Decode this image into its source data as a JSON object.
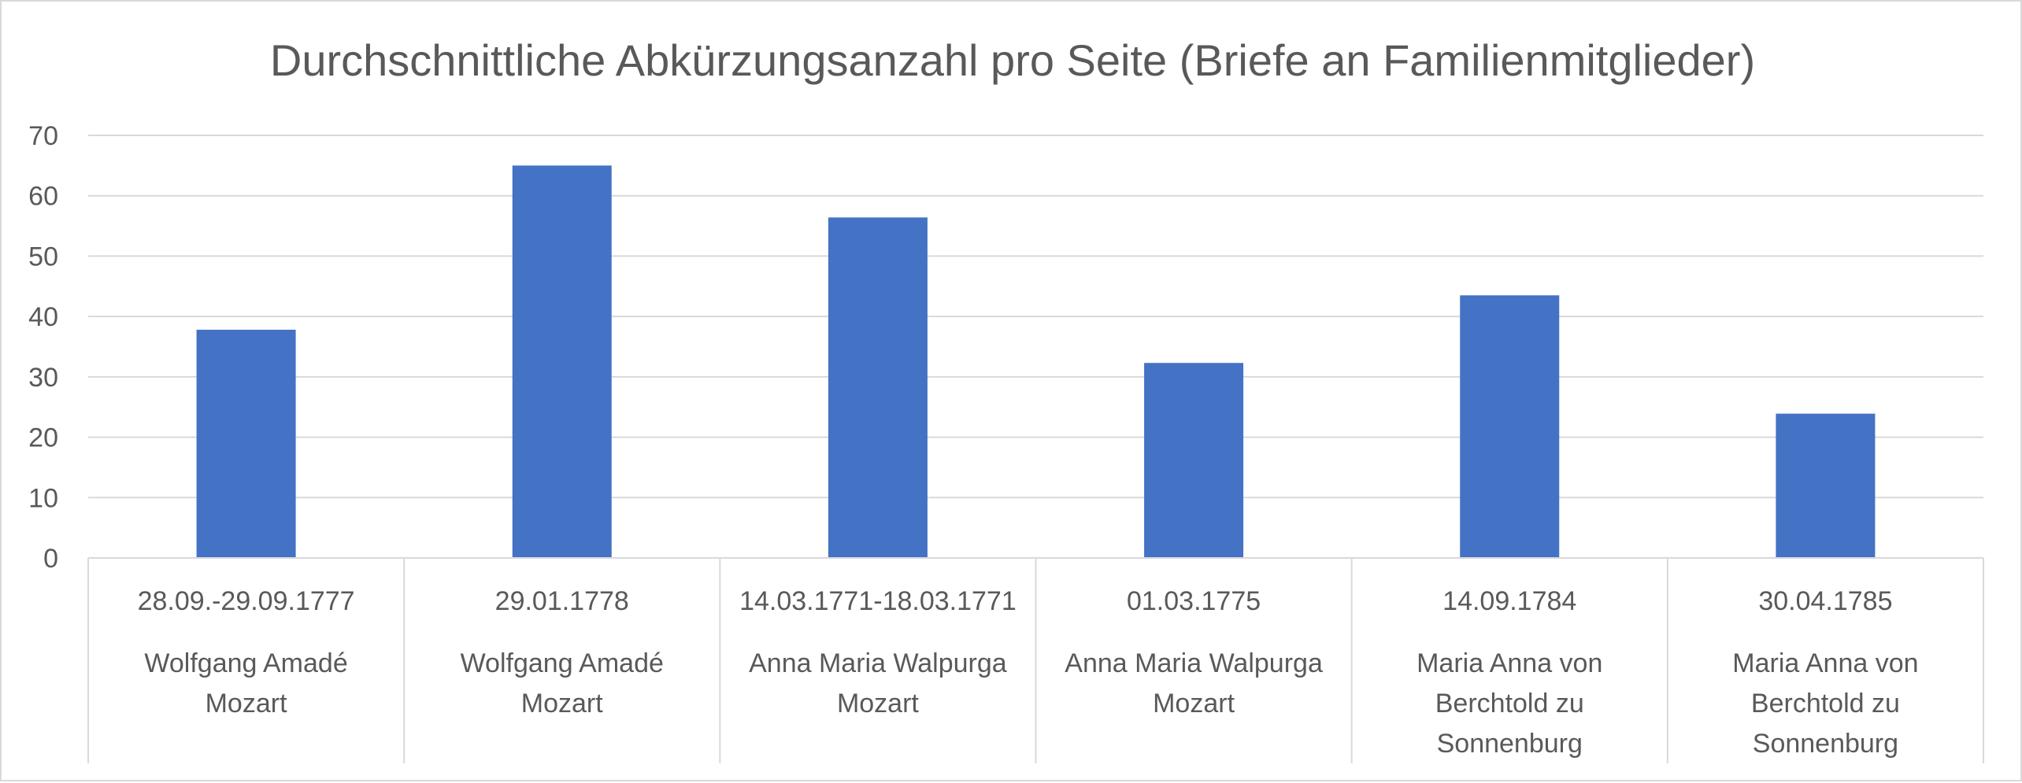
{
  "chart_data": {
    "type": "bar",
    "title": "Durchschnittliche Abkürzungsanzahl pro Seite (Briefe an Familienmitglieder)",
    "xlabel": "",
    "ylabel": "",
    "ylim": [
      0,
      70
    ],
    "yticks": [
      "0",
      "10",
      "20",
      "30",
      "40",
      "50",
      "60",
      "70"
    ],
    "grid": true,
    "legend": "none",
    "bar_color": "#4472C4",
    "gridline_color": "#d9d9d9",
    "categories": [
      {
        "date": "28.09.-29.09.1777",
        "person": "Wolfgang Amadé Mozart",
        "person_lines": [
          "Wolfgang Amadé",
          "Mozart"
        ]
      },
      {
        "date": "29.01.1778",
        "person": "Wolfgang Amadé Mozart",
        "person_lines": [
          "Wolfgang Amadé",
          "Mozart"
        ]
      },
      {
        "date": "14.03.1771-18.03.1771",
        "person": "Anna Maria Walpurga Mozart",
        "person_lines": [
          "Anna Maria Walpurga",
          "Mozart"
        ]
      },
      {
        "date": "01.03.1775",
        "person": "Anna Maria Walpurga Mozart",
        "person_lines": [
          "Anna Maria Walpurga",
          "Mozart"
        ]
      },
      {
        "date": "14.09.1784",
        "person": "Maria Anna von Berchtold zu Sonnenburg",
        "person_lines": [
          "Maria Anna von",
          "Berchtold zu",
          "Sonnenburg"
        ]
      },
      {
        "date": "30.04.1785",
        "person": "Maria Anna von Berchtold zu Sonnenburg",
        "person_lines": [
          "Maria Anna von",
          "Berchtold zu",
          "Sonnenburg"
        ]
      }
    ],
    "values": [
      37.8,
      65.0,
      56.4,
      32.3,
      43.5,
      23.9
    ]
  }
}
